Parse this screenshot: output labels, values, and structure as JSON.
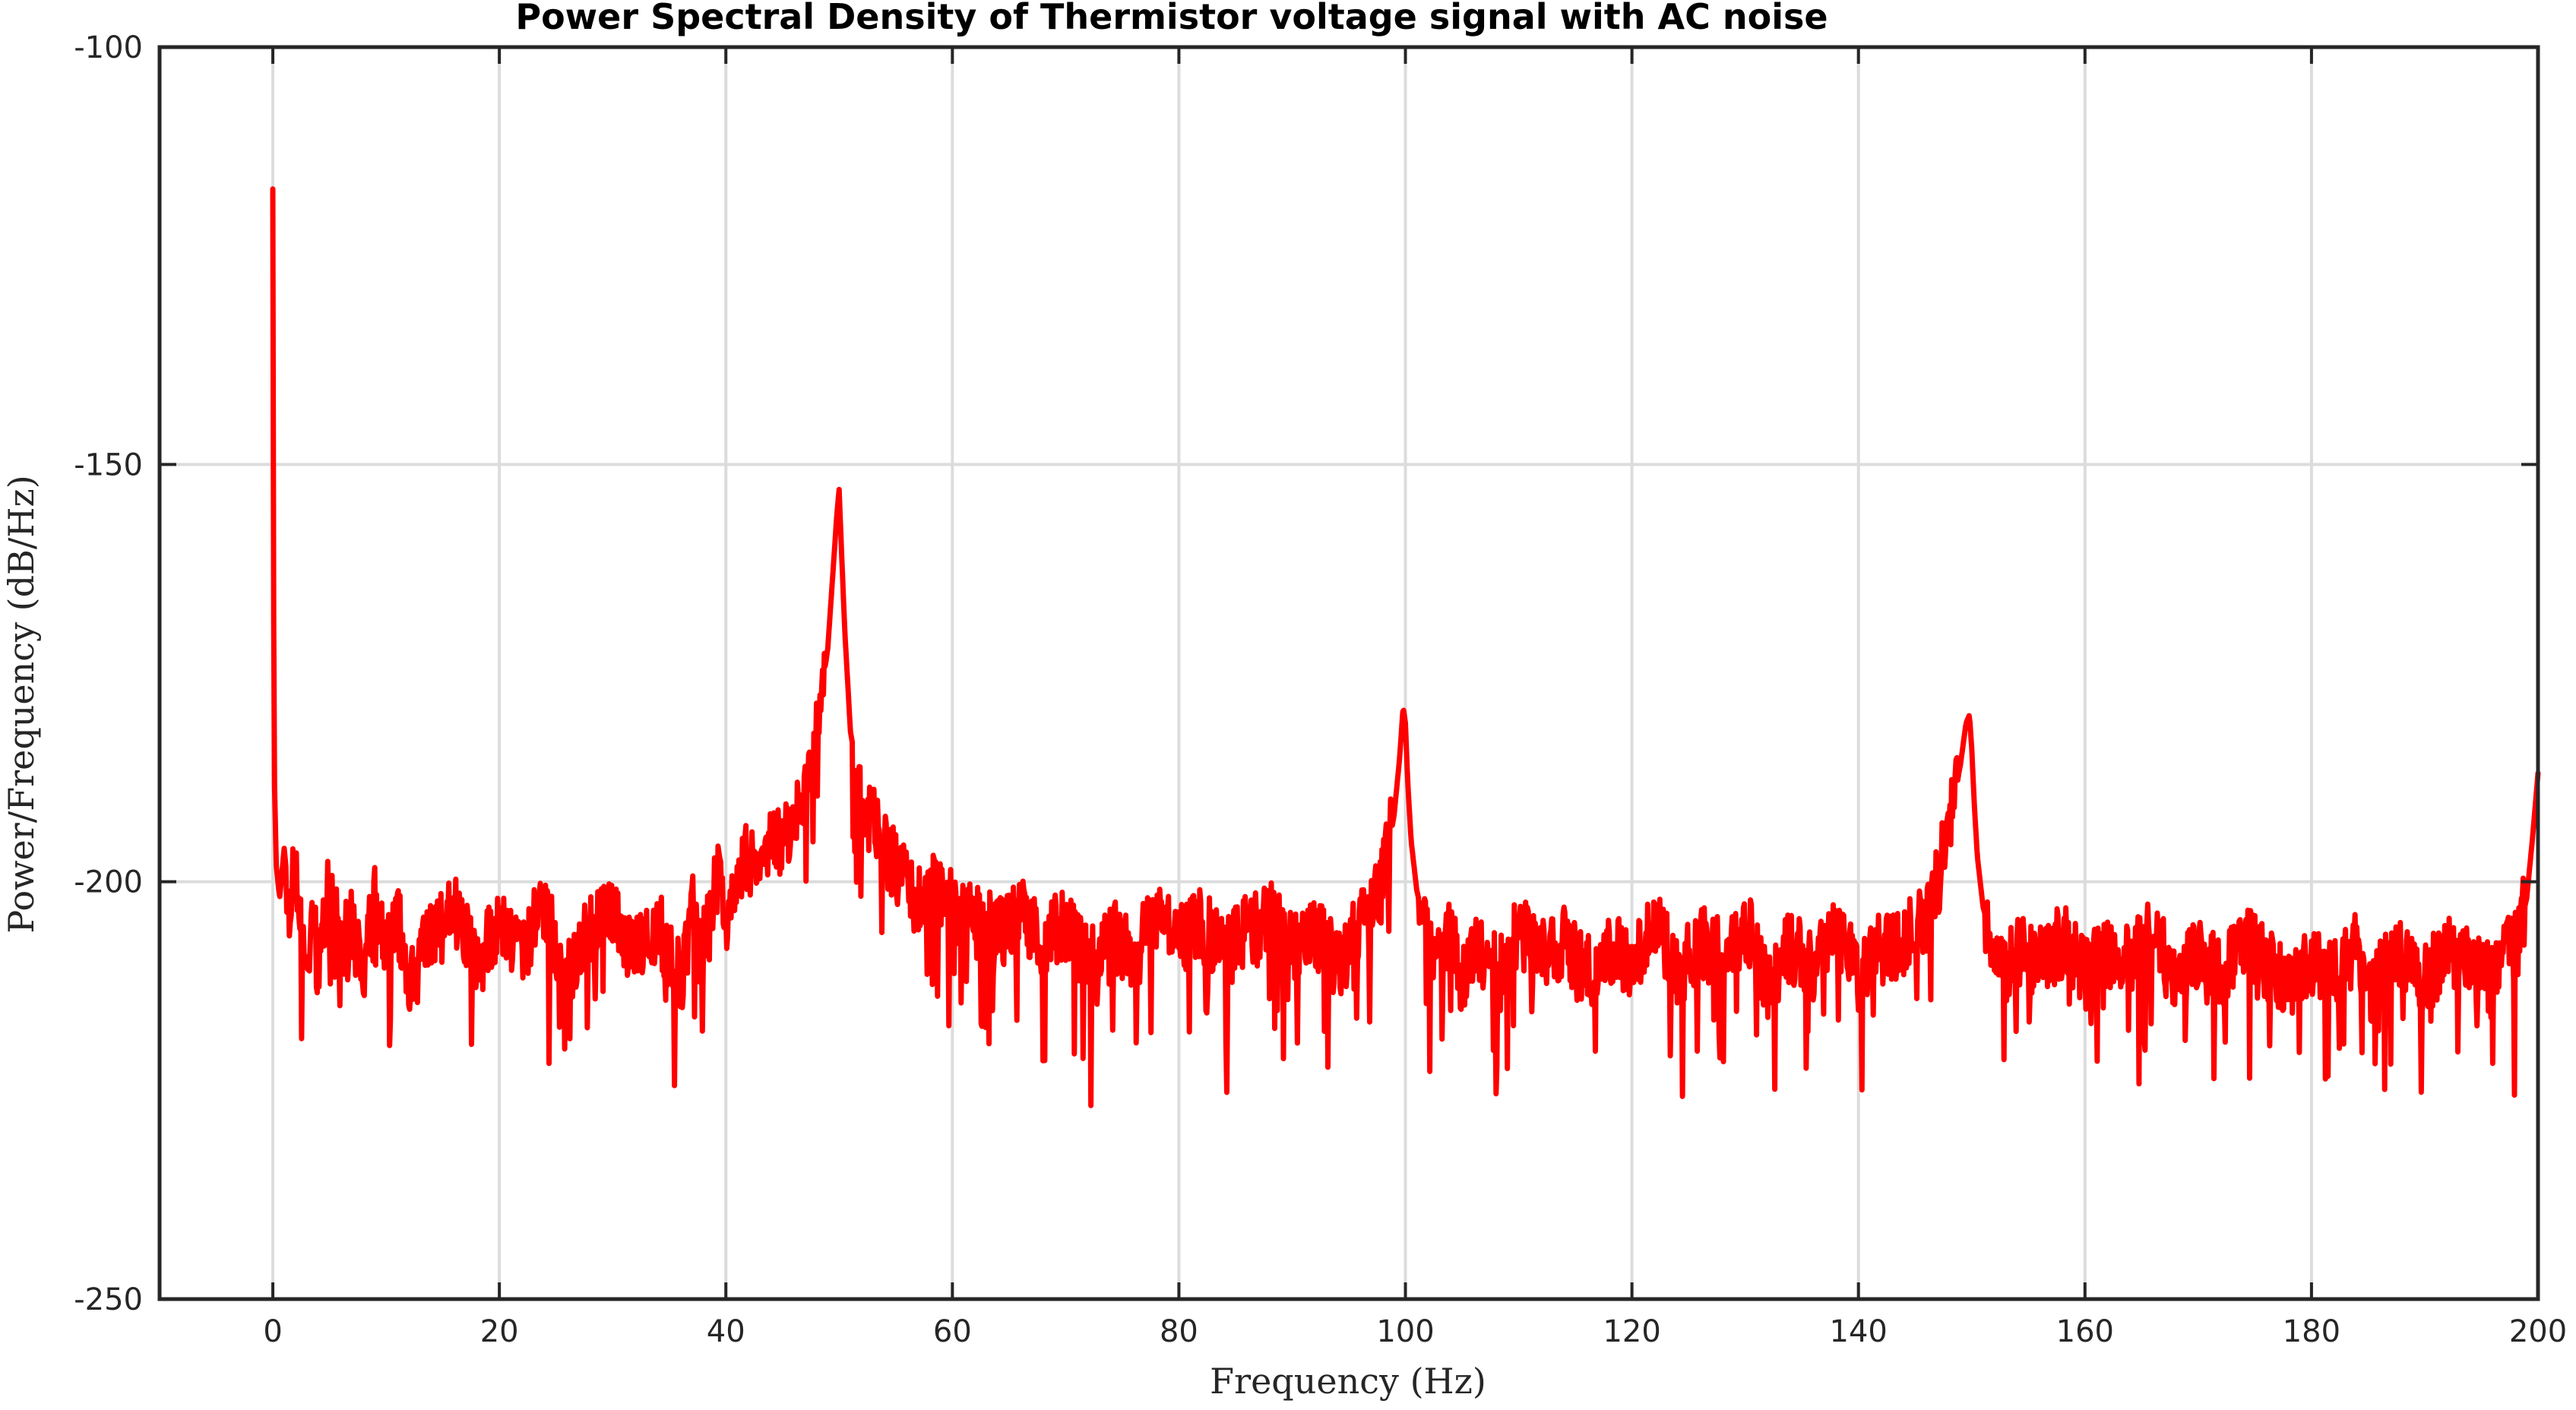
{
  "chart_data": {
    "type": "line",
    "title": "Power Spectral Density of Thermistor voltage signal with AC noise",
    "xlabel": "Frequency (Hz)",
    "ylabel": "Power/Frequency (dB/Hz)",
    "xlim": [
      -10,
      200
    ],
    "ylim": [
      -250,
      -100
    ],
    "xticks": [
      0,
      20,
      40,
      60,
      80,
      100,
      120,
      140,
      160,
      180,
      200
    ],
    "yticks": [
      -100,
      -150,
      -200,
      -250
    ],
    "xtick_labels": [
      "0",
      "20",
      "40",
      "60",
      "80",
      "100",
      "120",
      "140",
      "160",
      "180",
      "200"
    ],
    "ytick_labels": [
      "-100",
      "-150",
      "-200",
      "-250"
    ],
    "grid": true,
    "legend": "none",
    "line_color": "#ff0000",
    "series": [
      {
        "x": [
          0,
          0.05,
          0.1,
          0.3,
          0.6,
          1.0,
          1.5,
          2.0,
          2.5,
          3.0,
          3.5,
          4.0,
          5.0,
          6.0,
          7.0,
          8.0,
          9.0,
          10.0,
          11.0,
          12.0,
          14.0,
          16.0,
          18.0,
          20.0,
          22.0,
          24.0,
          26.0,
          28.0,
          30.0,
          32.0,
          34.0,
          36.0,
          37.0,
          38.0,
          39.0,
          39.5,
          40.0,
          41.0,
          42.0,
          43.0,
          44.0,
          45.0,
          46.0,
          47.0,
          48.0,
          49.0,
          49.5,
          49.8,
          50.0,
          50.2,
          50.5,
          51.0,
          52.0,
          53.0,
          54.0,
          55.0,
          56.0,
          57.0,
          58.0,
          60.0,
          62.0,
          64.0,
          66.0,
          68.0,
          70.0,
          72.0,
          73.0,
          74.0,
          76.0,
          78.0,
          80.0,
          82.0,
          84.0,
          86.0,
          88.0,
          90.0,
          92.0,
          94.0,
          96.0,
          97.0,
          98.0,
          99.0,
          99.5,
          99.8,
          100.0,
          100.2,
          100.5,
          101.0,
          102.0,
          103.0,
          104.0,
          105.0,
          106.0,
          108.0,
          110.0,
          112.0,
          114.0,
          116.0,
          118.0,
          120.0,
          122.0,
          124.0,
          126.0,
          128.0,
          130.0,
          132.0,
          134.0,
          136.0,
          138.0,
          140.0,
          142.0,
          144.0,
          146.0,
          147.0,
          148.0,
          149.0,
          149.5,
          149.8,
          150.0,
          150.2,
          150.5,
          151.0,
          152.0,
          153.0,
          154.0,
          156.0,
          158.0,
          160.0,
          162.0,
          164.0,
          166.0,
          168.0,
          170.0,
          172.0,
          174.0,
          176.0,
          178.0,
          180.0,
          182.0,
          184.0,
          185.5,
          186.0,
          188.0,
          190.0,
          192.0,
          194.0,
          196.0,
          197.0,
          198.0,
          198.5,
          199.0,
          199.5,
          200.0
        ],
        "y": [
          -117,
          -150,
          -185,
          -198,
          -202,
          -196,
          -203,
          -198,
          -206,
          -212,
          -204,
          -210,
          -200,
          -208,
          -205,
          -211,
          -202,
          -209,
          -204,
          -212,
          -207,
          -203,
          -210,
          -205,
          -208,
          -203,
          -211,
          -206,
          -204,
          -209,
          -205,
          -212,
          -203,
          -207,
          -201,
          -198,
          -206,
          -199,
          -197,
          -200,
          -196,
          -195,
          -193,
          -188,
          -182,
          -172,
          -162,
          -156,
          -153,
          -160,
          -170,
          -182,
          -190,
          -193,
          -196,
          -198,
          -200,
          -202,
          -201,
          -203,
          -205,
          -206,
          -204,
          -207,
          -205,
          -210,
          -208,
          -206,
          -209,
          -204,
          -207,
          -205,
          -209,
          -206,
          -204,
          -208,
          -206,
          -210,
          -205,
          -204,
          -200,
          -192,
          -185,
          -179,
          -181,
          -188,
          -195,
          -201,
          -207,
          -209,
          -206,
          -212,
          -208,
          -210,
          -206,
          -209,
          -207,
          -211,
          -208,
          -210,
          -205,
          -211,
          -207,
          -209,
          -205,
          -212,
          -208,
          -210,
          -206,
          -211,
          -208,
          -207,
          -204,
          -200,
          -193,
          -186,
          -181,
          -180,
          -184,
          -190,
          -197,
          -203,
          -208,
          -210,
          -208,
          -210,
          -207,
          -211,
          -208,
          -210,
          -206,
          -212,
          -208,
          -211,
          -207,
          -210,
          -212,
          -209,
          -211,
          -208,
          -213,
          -210,
          -209,
          -212,
          -208,
          -210,
          -212,
          -209,
          -208,
          -205,
          -202,
          -195,
          -187
        ]
      }
    ],
    "noise_seed": 1234
  }
}
